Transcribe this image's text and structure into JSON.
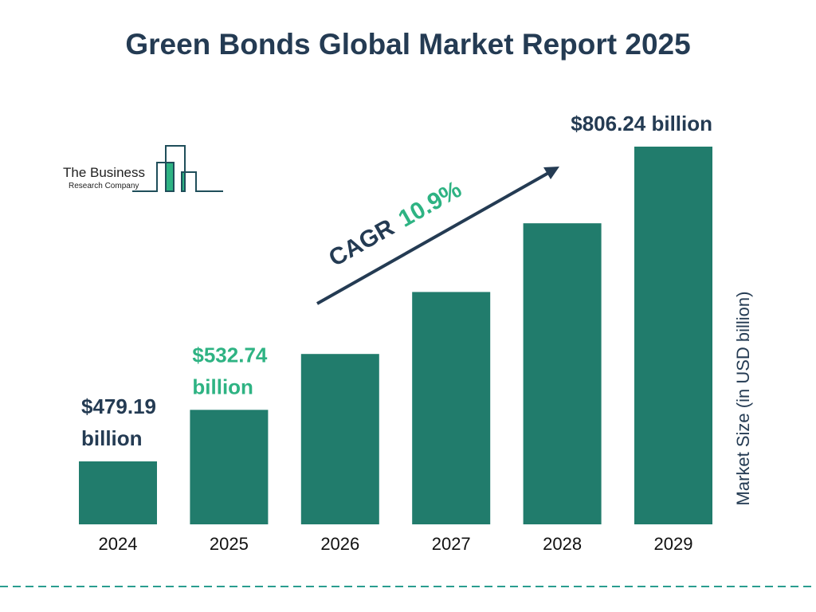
{
  "chart_data": {
    "type": "bar",
    "title": "Green Bonds Global Market Report 2025",
    "ylabel": "Market Size (in USD billion)",
    "categories": [
      "2024",
      "2025",
      "2026",
      "2027",
      "2028",
      "2029"
    ],
    "values": [
      479.19,
      532.74,
      590.8,
      655.2,
      726.6,
      806.24
    ],
    "labels": [
      {
        "index": 0,
        "lines": [
          "$479.19",
          "billion"
        ],
        "color": "#243b53"
      },
      {
        "index": 1,
        "lines": [
          "$532.74",
          "billion"
        ],
        "color": "#2eb383"
      },
      {
        "index": 5,
        "lines": [
          "$806.24 billion"
        ],
        "color": "#243b53"
      }
    ],
    "annotation": {
      "prefix": "CAGR",
      "value": "10.9%"
    },
    "bar_color": "#217c6c",
    "grid": false
  },
  "logo": {
    "line1": "The Business",
    "line2": "Research Company"
  },
  "colors": {
    "dark": "#243b53",
    "accent": "#2eb383",
    "divider": "#2a9d8f"
  }
}
